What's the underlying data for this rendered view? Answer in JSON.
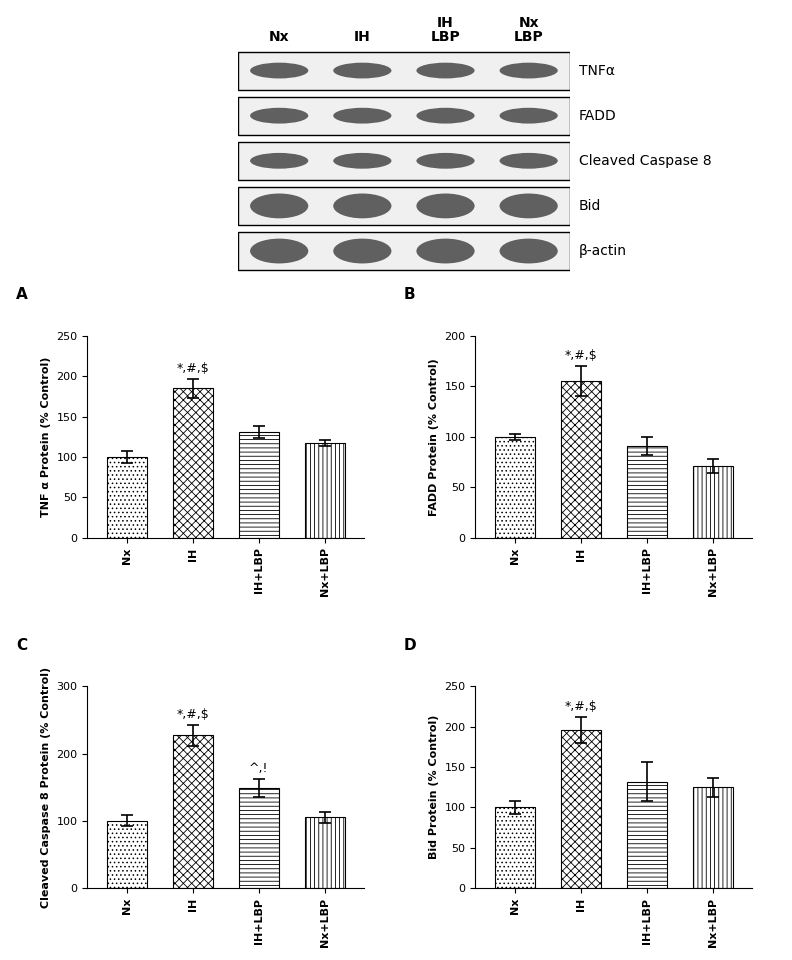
{
  "blot": {
    "lanes": [
      "Nx",
      "IH",
      "IH\nLBP",
      "Nx\nLBP"
    ],
    "proteins": [
      "TNFα",
      "FADD",
      "Cleaved Caspase 8",
      "Bid",
      "β-actin"
    ]
  },
  "chart_data": [
    {
      "type": "bar",
      "panel": "A",
      "categories": [
        "Nx",
        "IH",
        "IH+LBP",
        "Nx+LBP"
      ],
      "values": [
        100,
        185,
        131,
        117
      ],
      "errors": [
        7,
        12,
        8,
        4
      ],
      "ylabel": "TNF α Protein (% Control)",
      "ylim": [
        0,
        250
      ],
      "yticks": [
        0,
        50,
        100,
        150,
        200,
        250
      ],
      "color": "#ffffff",
      "annotations": [
        {
          "category": "IH",
          "text": "*,#,$"
        }
      ]
    },
    {
      "type": "bar",
      "panel": "B",
      "categories": [
        "Nx",
        "IH",
        "IH+LBP",
        "Nx+LBP"
      ],
      "values": [
        100,
        155,
        91,
        71
      ],
      "errors": [
        3,
        15,
        9,
        7
      ],
      "ylabel": "FADD Protein (% Control)",
      "ylim": [
        0,
        200
      ],
      "yticks": [
        0,
        50,
        100,
        150,
        200
      ],
      "color": "#ffffff",
      "annotations": [
        {
          "category": "IH",
          "text": "*,#,$"
        }
      ]
    },
    {
      "type": "bar",
      "panel": "C",
      "categories": [
        "Nx",
        "IH",
        "IH+LBP",
        "Nx+LBP"
      ],
      "values": [
        100,
        227,
        149,
        105
      ],
      "errors": [
        8,
        15,
        13,
        8
      ],
      "ylabel": "Cleaved Caspase 8 Protein (% Control)",
      "ylim": [
        0,
        300
      ],
      "yticks": [
        0,
        100,
        200,
        300
      ],
      "color": "#ffffff",
      "annotations": [
        {
          "category": "IH",
          "text": "*,#,$"
        },
        {
          "category": "IH+LBP",
          "text": "^,!"
        }
      ]
    },
    {
      "type": "bar",
      "panel": "D",
      "categories": [
        "Nx",
        "IH",
        "IH+LBP",
        "Nx+LBP"
      ],
      "values": [
        100,
        196,
        132,
        125
      ],
      "errors": [
        8,
        16,
        24,
        12
      ],
      "ylabel": "Bid Protein (% Control)",
      "ylim": [
        0,
        250
      ],
      "yticks": [
        0,
        50,
        100,
        150,
        200,
        250
      ],
      "color": "#ffffff",
      "annotations": [
        {
          "category": "IH",
          "text": "*,#,$"
        }
      ]
    }
  ]
}
